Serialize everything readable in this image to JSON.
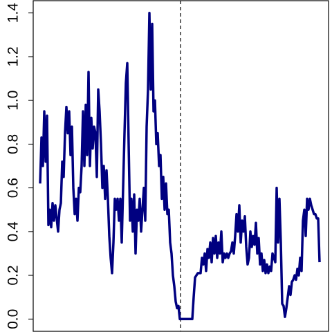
{
  "chart_data": {
    "type": "line",
    "values": [
      0.62,
      0.83,
      0.7,
      0.95,
      0.72,
      0.93,
      0.43,
      0.5,
      0.42,
      0.53,
      0.45,
      0.52,
      0.46,
      0.4,
      0.5,
      0.53,
      0.72,
      0.65,
      0.85,
      0.97,
      0.85,
      0.95,
      0.75,
      0.88,
      0.6,
      0.48,
      0.55,
      0.45,
      0.6,
      0.58,
      0.7,
      0.95,
      0.7,
      0.98,
      0.75,
      1.13,
      0.7,
      0.92,
      0.78,
      0.88,
      0.85,
      0.65,
      1.05,
      0.95,
      0.8,
      0.6,
      0.7,
      0.55,
      0.68,
      0.55,
      0.38,
      0.28,
      0.21,
      0.35,
      0.55,
      0.5,
      0.55,
      0.45,
      0.55,
      0.35,
      0.6,
      0.85,
      1.08,
      1.17,
      0.8,
      0.45,
      0.55,
      0.4,
      0.57,
      0.3,
      0.5,
      0.45,
      0.55,
      0.4,
      0.5,
      0.6,
      0.45,
      0.88,
      1.05,
      1.4,
      1.05,
      1.35,
      0.95,
      1.0,
      0.8,
      0.85,
      0.7,
      0.75,
      0.55,
      0.65,
      0.5,
      0.62,
      0.48,
      0.5,
      0.35,
      0.3,
      0.2,
      0.15,
      0.08,
      0.05,
      0.06,
      0,
      0,
      0,
      0,
      0,
      0,
      0,
      0,
      0,
      0,
      0.1,
      0.19,
      0.2,
      0.21,
      0.21,
      0.21,
      0.28,
      0.25,
      0.3,
      0.22,
      0.32,
      0.28,
      0.35,
      0.26,
      0.37,
      0.3,
      0.38,
      0.28,
      0.35,
      0.3,
      0.4,
      0.26,
      0.3,
      0.28,
      0.3,
      0.28,
      0.3,
      0.31,
      0.35,
      0.3,
      0.38,
      0.48,
      0.4,
      0.52,
      0.35,
      0.45,
      0.4,
      0.47,
      0.33,
      0.25,
      0.28,
      0.4,
      0.33,
      0.38,
      0.34,
      0.44,
      0.3,
      0.37,
      0.25,
      0.3,
      0.22,
      0.27,
      0.21,
      0.25,
      0.21,
      0.24,
      0.22,
      0.3,
      0.28,
      0.26,
      0.6,
      0.35,
      0.55,
      0.35,
      0.07,
      0.06,
      0.01,
      0.05,
      0.1,
      0.15,
      0.11,
      0.17,
      0.18,
      0.2,
      0.18,
      0.23,
      0.2,
      0.28,
      0.22,
      0.45,
      0.5,
      0.38,
      0.55,
      0.5,
      0.55,
      0.52,
      0.5,
      0.48,
      0.48,
      0.46,
      0.46,
      0.26
    ],
    "color": "#000080",
    "xlim": [
      -5,
      208.5
    ],
    "ylim": [
      -0.056,
      1.456
    ],
    "yticks": [
      {
        "value": 0,
        "label": "0.0"
      },
      0.2,
      0.4,
      0.6,
      0.8,
      {
        "value": 1,
        "label": "1.0"
      },
      1.2,
      1.4
    ],
    "vline": 101.5
  }
}
